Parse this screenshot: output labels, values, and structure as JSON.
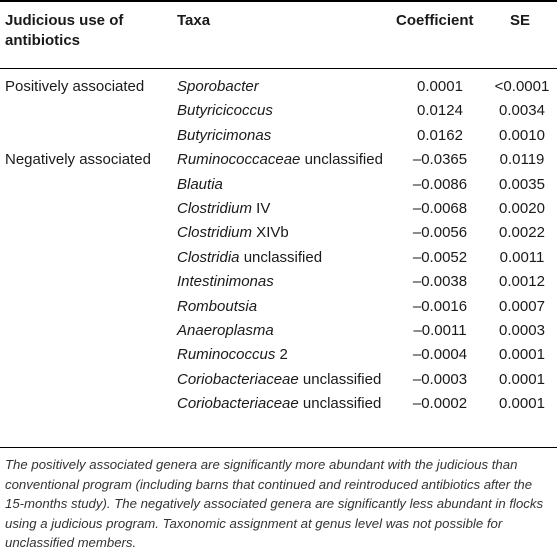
{
  "headers": {
    "group": "Judicious use of antibiotics",
    "taxa": "Taxa",
    "coefficient": "Coefficient",
    "se": "SE"
  },
  "rows": [
    {
      "group": "Positively associated",
      "taxa_italic": "Sporobacter",
      "taxa_rest": "",
      "coefficient": "0.0001",
      "se": "<0.0001"
    },
    {
      "group": "",
      "taxa_italic": "Butyricicoccus",
      "taxa_rest": "",
      "coefficient": "0.0124",
      "se": "0.0034"
    },
    {
      "group": "",
      "taxa_italic": "Butyricimonas",
      "taxa_rest": "",
      "coefficient": "0.0162",
      "se": "0.0010"
    },
    {
      "group": "Negatively associated",
      "taxa_italic": "Ruminococcaceae",
      "taxa_rest": " unclassified",
      "coefficient": "–0.0365",
      "se": "0.0119"
    },
    {
      "group": "",
      "taxa_italic": "Blautia",
      "taxa_rest": "",
      "coefficient": "–0.0086",
      "se": "0.0035"
    },
    {
      "group": "",
      "taxa_italic": "Clostridium",
      "taxa_rest": " IV",
      "coefficient": "–0.0068",
      "se": "0.0020"
    },
    {
      "group": "",
      "taxa_italic": "Clostridium",
      "taxa_rest": " XIVb",
      "coefficient": "–0.0056",
      "se": "0.0022"
    },
    {
      "group": "",
      "taxa_italic": "Clostridia",
      "taxa_rest": " unclassified",
      "coefficient": "–0.0052",
      "se": "0.0011"
    },
    {
      "group": "",
      "taxa_italic": "Intestinimonas",
      "taxa_rest": "",
      "coefficient": "–0.0038",
      "se": "0.0012"
    },
    {
      "group": "",
      "taxa_italic": "Romboutsia",
      "taxa_rest": "",
      "coefficient": "–0.0016",
      "se": "0.0007"
    },
    {
      "group": "",
      "taxa_italic": "Anaeroplasma",
      "taxa_rest": "",
      "coefficient": "–0.0011",
      "se": "0.0003"
    },
    {
      "group": "",
      "taxa_italic": "Ruminococcus",
      "taxa_rest": " 2",
      "coefficient": "–0.0004",
      "se": "0.0001"
    },
    {
      "group": "",
      "taxa_italic": "Coriobacteriaceae",
      "taxa_rest": " unclassified",
      "coefficient": "–0.0003",
      "se": "0.0001"
    },
    {
      "group": "",
      "taxa_italic": "Coriobacteriaceae",
      "taxa_rest": " unclassified",
      "coefficient": "–0.0002",
      "se": "0.0001"
    }
  ],
  "footnote": "The positively associated genera are significantly more abundant with the judicious than conventional program (including barns that continued and reintroduced antibiotics after the 15-months study). The negatively associated genera are significantly less abundant in flocks using a judicious program. Taxonomic assignment at genus level was not possible for unclassified members."
}
